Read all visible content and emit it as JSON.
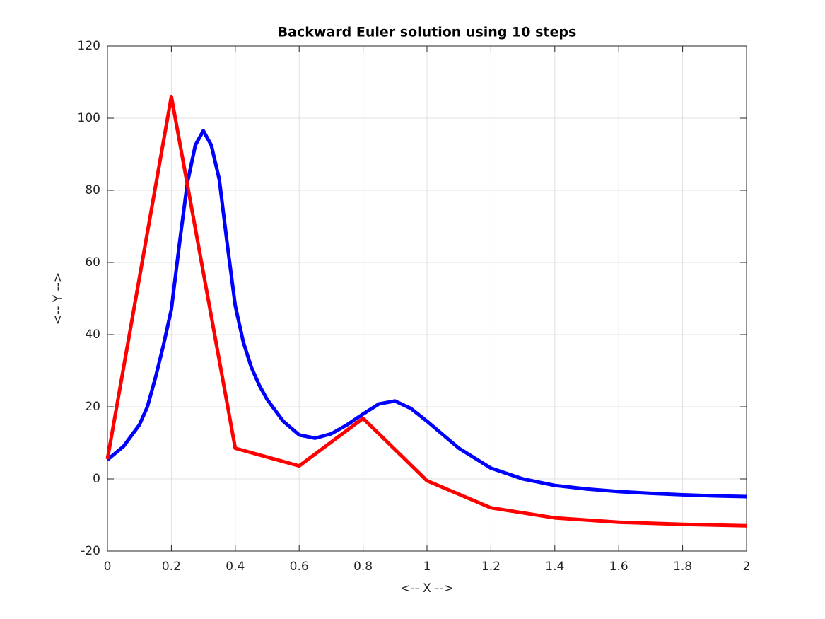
{
  "chart_data": {
    "type": "line",
    "title": "Backward Euler solution using 10 steps",
    "xlabel": "<-- X -->",
    "ylabel": "<-- Y -->",
    "xlim": [
      0,
      2
    ],
    "xticks": [
      0,
      0.2,
      0.4,
      0.6,
      0.8,
      1,
      1.2,
      1.4,
      1.6,
      1.8,
      2
    ],
    "ylim": [
      -20,
      120
    ],
    "yticks": [
      -20,
      0,
      20,
      40,
      60,
      80,
      100,
      120
    ],
    "grid": true,
    "series": [
      {
        "color": "#0000ff",
        "x": [
          0,
          0.05,
          0.1,
          0.125,
          0.15,
          0.175,
          0.2,
          0.225,
          0.25,
          0.275,
          0.3,
          0.325,
          0.35,
          0.375,
          0.4,
          0.425,
          0.45,
          0.475,
          0.5,
          0.55,
          0.6,
          0.65,
          0.7,
          0.75,
          0.8,
          0.85,
          0.9,
          0.95,
          1.0,
          1.1,
          1.2,
          1.3,
          1.4,
          1.5,
          1.6,
          1.7,
          1.8,
          1.9,
          2.0
        ],
        "values": [
          5.3,
          9,
          15,
          20,
          28,
          37,
          47,
          65,
          82,
          92.5,
          96.5,
          92.5,
          83,
          65,
          48,
          38,
          31,
          26,
          22,
          16,
          12.2,
          11.3,
          12.5,
          15,
          18,
          20.8,
          21.6,
          19.5,
          16,
          8.5,
          3,
          0,
          -1.8,
          -2.8,
          -3.5,
          -4,
          -4.4,
          -4.7,
          -4.9
        ]
      },
      {
        "color": "#ff0000",
        "x": [
          0,
          0.2,
          0.4,
          0.6,
          0.8,
          1.0,
          1.2,
          1.4,
          1.6,
          1.8,
          2.0
        ],
        "values": [
          5.5,
          106,
          8.5,
          3.6,
          16.8,
          -0.5,
          -8,
          -10.8,
          -12,
          -12.6,
          -13
        ]
      }
    ]
  }
}
